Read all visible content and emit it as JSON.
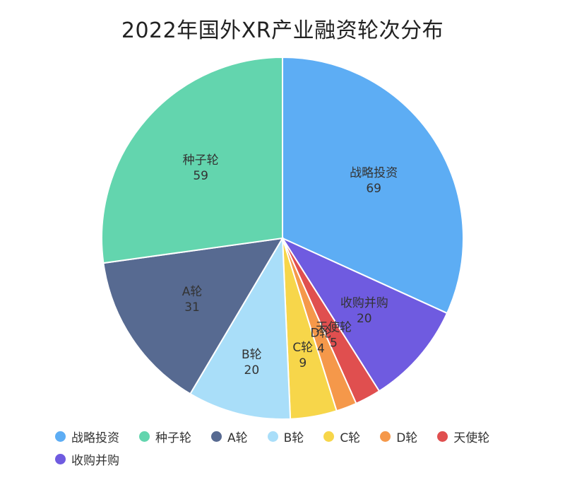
{
  "chart_data": {
    "type": "pie",
    "title": "2022年国外XR产业融资轮次分布",
    "legend_position": "bottom-left",
    "slices": [
      {
        "name": "战略投资",
        "value": 69,
        "color": "#5DADF4"
      },
      {
        "name": "收购并购",
        "value": 20,
        "color": "#6F5BE0"
      },
      {
        "name": "天使轮",
        "value": 5,
        "color": "#E04F4F"
      },
      {
        "name": "D轮",
        "value": 4,
        "color": "#F5984A"
      },
      {
        "name": "C轮",
        "value": 9,
        "color": "#F7D64A"
      },
      {
        "name": "B轮",
        "value": 20,
        "color": "#A9DEF9"
      },
      {
        "name": "A轮",
        "value": 31,
        "color": "#576A91"
      },
      {
        "name": "种子轮",
        "value": 59,
        "color": "#63D5AE"
      }
    ],
    "legend_order": [
      "战略投资",
      "种子轮",
      "A轮",
      "B轮",
      "C轮",
      "D轮",
      "天使轮",
      "收购并购"
    ]
  }
}
